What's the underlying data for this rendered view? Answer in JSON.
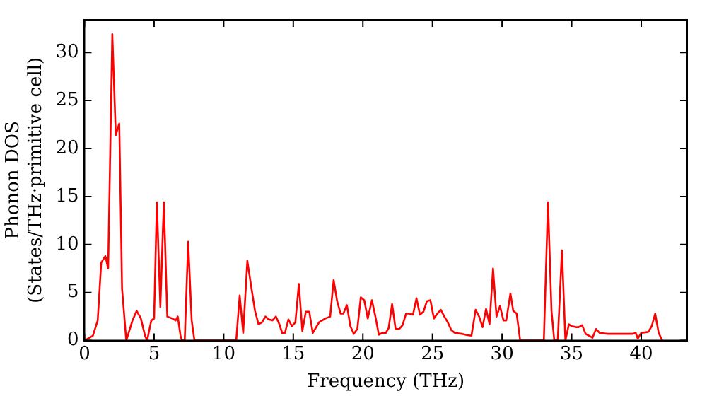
{
  "chart_data": {
    "type": "line",
    "xlabel": "Frequency (THz)",
    "ylabel": "Phonon DOS\n(States/THz·primitive cell)",
    "x": [
      0,
      0.6,
      0.95,
      1.2,
      1.5,
      1.7,
      2.0,
      2.25,
      2.5,
      2.7,
      3.0,
      3.45,
      3.75,
      4.05,
      4.35,
      4.5,
      4.8,
      5.0,
      5.2,
      5.45,
      5.7,
      5.95,
      6.3,
      6.55,
      6.7,
      6.9,
      7.0,
      7.2,
      7.45,
      7.7,
      7.9,
      10.9,
      11.15,
      11.4,
      11.7,
      12.0,
      12.25,
      12.5,
      12.75,
      13.0,
      13.25,
      13.5,
      13.75,
      14.0,
      14.2,
      14.4,
      14.65,
      14.9,
      15.15,
      15.4,
      15.65,
      15.9,
      16.15,
      16.4,
      16.85,
      17.3,
      17.65,
      17.9,
      18.15,
      18.4,
      18.6,
      18.85,
      19.1,
      19.35,
      19.6,
      19.85,
      20.1,
      20.35,
      20.65,
      20.9,
      21.15,
      21.4,
      21.65,
      21.85,
      22.1,
      22.35,
      22.6,
      22.85,
      23.1,
      23.35,
      23.6,
      23.85,
      24.1,
      24.35,
      24.6,
      24.85,
      25.1,
      25.35,
      25.6,
      25.85,
      26.1,
      26.35,
      26.6,
      27.1,
      27.4,
      27.8,
      28.1,
      28.35,
      28.6,
      28.85,
      29.1,
      29.35,
      29.6,
      29.85,
      30.1,
      30.3,
      30.6,
      30.8,
      31.05,
      31.3,
      33.0,
      33.3,
      33.55,
      33.75,
      34.0,
      34.3,
      34.55,
      34.8,
      35.0,
      35.3,
      35.5,
      35.75,
      36.0,
      36.25,
      36.5,
      36.75,
      37.0,
      37.6,
      39.4,
      39.6,
      39.75,
      40.0,
      40.5,
      40.75,
      41.0,
      41.25,
      41.5
    ],
    "series": [
      {
        "color": "#ff0000",
        "values": [
          0,
          0.5,
          2.1,
          8.1,
          8.8,
          7.5,
          31.9,
          21.4,
          22.6,
          5.4,
          0,
          2.1,
          3.1,
          2.3,
          0.5,
          0,
          2.1,
          2.3,
          14.4,
          3.5,
          14.4,
          2.5,
          2.3,
          2.1,
          2.5,
          0.5,
          0,
          0,
          10.3,
          2.1,
          0,
          0,
          4.7,
          0.8,
          8.3,
          5.4,
          3.1,
          1.7,
          1.9,
          2.5,
          2.2,
          2.1,
          2.5,
          1.7,
          0.8,
          0.8,
          2.2,
          1.5,
          1.9,
          5.9,
          1.0,
          3.0,
          3.0,
          0.8,
          1.9,
          2.3,
          2.5,
          6.3,
          4.1,
          2.8,
          2.8,
          3.7,
          1.5,
          0.7,
          1.2,
          4.5,
          4.2,
          2.3,
          4.2,
          2.5,
          0.6,
          0.8,
          0.8,
          1.3,
          3.8,
          1.2,
          1.2,
          1.6,
          2.8,
          2.8,
          2.7,
          4.4,
          2.7,
          3.0,
          4.1,
          4.2,
          2.3,
          2.8,
          3.2,
          2.5,
          1.9,
          1.1,
          0.8,
          0.7,
          0.6,
          0.5,
          3.2,
          2.5,
          1.4,
          3.3,
          1.7,
          7.5,
          2.5,
          3.6,
          2.1,
          2.1,
          4.9,
          3.1,
          2.8,
          0,
          0,
          14.4,
          3.1,
          0,
          0,
          9.4,
          0,
          1.7,
          1.5,
          1.4,
          1.4,
          1.6,
          0.7,
          0.5,
          0.3,
          1.2,
          0.8,
          0.7,
          0.7,
          0.8,
          0.2,
          0.8,
          0.9,
          1.5,
          2.8,
          0.8,
          0
        ]
      }
    ],
    "xlim": [
      0,
      43.3
    ],
    "xticks": [
      0,
      5,
      10,
      15,
      20,
      25,
      30,
      35,
      40
    ],
    "ylim": [
      0,
      33.4
    ],
    "yticks": [
      0,
      5,
      10,
      15,
      20,
      25,
      30
    ],
    "grid": false,
    "legend": false,
    "marker": "none",
    "line_style": "solid"
  }
}
